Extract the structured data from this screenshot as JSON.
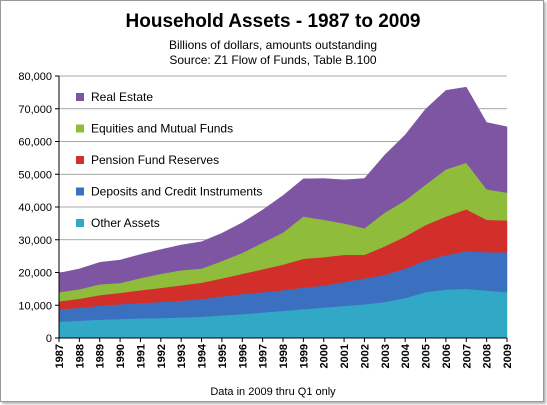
{
  "chart_data": {
    "type": "area",
    "stacked": true,
    "title": "Household Assets - 1987 to 2009",
    "subtitle_lines": [
      "Billions of dollars, amounts outstanding",
      "Source: Z1 Flow of Funds, Table B.100"
    ],
    "note": "Data in 2009 thru Q1 only",
    "xlabel": "",
    "ylabel": "",
    "ylim": [
      0,
      80000
    ],
    "y_ticks": [
      "0",
      "10,000",
      "20,000",
      "30,000",
      "40,000",
      "50,000",
      "60,000",
      "70,000",
      "80,000"
    ],
    "y_tick_values": [
      0,
      10000,
      20000,
      30000,
      40000,
      50000,
      60000,
      70000,
      80000
    ],
    "categories": [
      "1987",
      "1988",
      "1989",
      "1990",
      "1991",
      "1992",
      "1993",
      "1994",
      "1995",
      "1996",
      "1997",
      "1998",
      "1999",
      "2000",
      "2001",
      "2002",
      "2003",
      "2004",
      "2005",
      "2006",
      "2007",
      "2008",
      "2009"
    ],
    "grid": true,
    "legend_position": "top-left inside",
    "series": [
      {
        "name": "Other Assets",
        "color": "#31a9c6",
        "values": [
          5000,
          5300,
          5600,
          5800,
          6000,
          6100,
          6300,
          6500,
          6900,
          7300,
          7800,
          8300,
          8800,
          9300,
          9800,
          10300,
          11000,
          12200,
          14000,
          14800,
          15000,
          14500,
          14000
        ]
      },
      {
        "name": "Deposits and Credit Instruments",
        "color": "#3b6fc0",
        "values": [
          3800,
          3900,
          4300,
          4500,
          4700,
          4900,
          5100,
          5400,
          5800,
          6100,
          6200,
          6300,
          6600,
          6700,
          7300,
          7900,
          8300,
          9000,
          9700,
          10500,
          11500,
          11700,
          12200
        ]
      },
      {
        "name": "Pension Fund  Reserves",
        "color": "#d22f2b",
        "values": [
          2400,
          2800,
          3200,
          3500,
          3900,
          4300,
          4700,
          5000,
          5500,
          6200,
          7000,
          7800,
          8800,
          8700,
          8300,
          7200,
          8700,
          9800,
          10800,
          11800,
          12800,
          9900,
          9700
        ]
      },
      {
        "name": "Equities and Mutual Funds",
        "color": "#8fbd3b",
        "values": [
          2800,
          2900,
          3300,
          3000,
          3700,
          4300,
          4600,
          4300,
          5300,
          6400,
          8100,
          9800,
          12900,
          11400,
          9600,
          8100,
          10300,
          11000,
          12300,
          14400,
          14200,
          9300,
          8500
        ]
      },
      {
        "name": "Real Estate",
        "color": "#7e55a3",
        "values": [
          5800,
          6200,
          6700,
          7000,
          7200,
          7400,
          7700,
          8200,
          8500,
          9200,
          10000,
          11300,
          11500,
          12600,
          13300,
          15200,
          17600,
          20000,
          23100,
          24100,
          23100,
          20400,
          20100
        ]
      }
    ],
    "legend_order": [
      "Real Estate",
      "Equities and Mutual Funds",
      "Pension Fund  Reserves",
      "Deposits and Credit Instruments",
      "Other Assets"
    ]
  }
}
